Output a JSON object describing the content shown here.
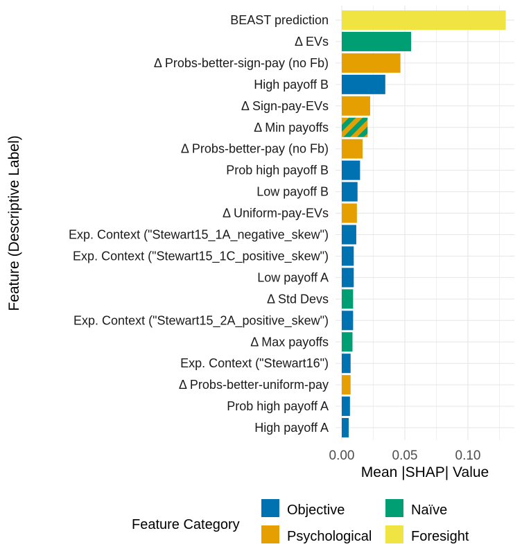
{
  "chart_data": {
    "type": "bar",
    "orientation": "horizontal",
    "xlabel": "Mean |SHAP| Value",
    "ylabel": "Feature (Descriptive Label)",
    "xlim": [
      0,
      0.13
    ],
    "x_ticks": [
      "0.00",
      "0.05",
      "0.10"
    ],
    "x_tick_values": [
      0,
      0.05,
      0.1
    ],
    "grid": true,
    "legend": {
      "title": "Feature Category",
      "placement": "bottom",
      "entries": [
        {
          "name": "Objective",
          "color": "#0072B2"
        },
        {
          "name": "Naïve",
          "color": "#009E73"
        },
        {
          "name": "Psychological",
          "color": "#E69F00"
        },
        {
          "name": "Foresight",
          "color": "#F0E442"
        }
      ]
    },
    "bars": [
      {
        "label": "BEAST prediction",
        "value": 0.13,
        "category": "Foresight"
      },
      {
        "label": "Δ EVs",
        "value": 0.055,
        "category": "Naïve"
      },
      {
        "label": "Δ Probs-better-sign-pay (no Fb)",
        "value": 0.0465,
        "category": "Psychological"
      },
      {
        "label": "High payoff B",
        "value": 0.0345,
        "category": "Objective"
      },
      {
        "label": "Δ Sign-pay-EVs",
        "value": 0.0225,
        "category": "Psychological"
      },
      {
        "label": "Δ Min payoffs",
        "value": 0.0205,
        "category": "Naïve / Psychological"
      },
      {
        "label": "Δ Probs-better-pay (no Fb)",
        "value": 0.0165,
        "category": "Psychological"
      },
      {
        "label": "Prob high payoff B",
        "value": 0.0145,
        "category": "Objective"
      },
      {
        "label": "Low payoff B",
        "value": 0.0125,
        "category": "Objective"
      },
      {
        "label": "Δ Uniform-pay-EVs",
        "value": 0.012,
        "category": "Psychological"
      },
      {
        "label": "Exp. Context (\"Stewart15_1A_negative_skew\")",
        "value": 0.0115,
        "category": "Objective"
      },
      {
        "label": "Exp. Context (\"Stewart15_1C_positive_skew\")",
        "value": 0.0095,
        "category": "Objective"
      },
      {
        "label": "Low payoff A",
        "value": 0.0095,
        "category": "Objective"
      },
      {
        "label": "Δ Std Devs",
        "value": 0.009,
        "category": "Naïve"
      },
      {
        "label": "Exp. Context (\"Stewart15_2A_positive_skew\")",
        "value": 0.009,
        "category": "Objective"
      },
      {
        "label": "Δ Max payoffs",
        "value": 0.0085,
        "category": "Naïve"
      },
      {
        "label": "Exp. Context (\"Stewart16\")",
        "value": 0.007,
        "category": "Objective"
      },
      {
        "label": "Δ Probs-better-uniform-pay",
        "value": 0.007,
        "category": "Psychological"
      },
      {
        "label": "Prob high payoff A",
        "value": 0.0065,
        "category": "Objective"
      },
      {
        "label": "High payoff A",
        "value": 0.0055,
        "category": "Objective"
      }
    ]
  }
}
